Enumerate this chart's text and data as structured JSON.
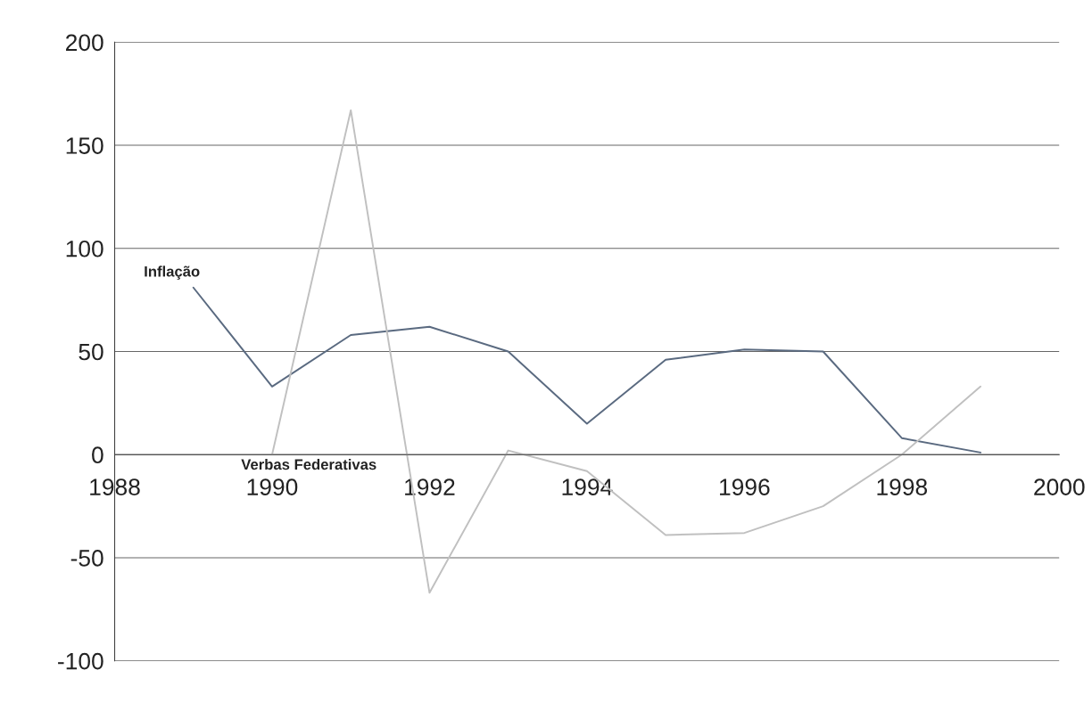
{
  "chart_data": {
    "type": "line",
    "x": [
      1989,
      1990,
      1991,
      1992,
      1993,
      1994,
      1995,
      1996,
      1997,
      1998,
      1999
    ],
    "series": [
      {
        "name": "Inflação",
        "color": "#5a6a80",
        "values": [
          81,
          33,
          58,
          62,
          50,
          15,
          46,
          51,
          50,
          8,
          1
        ]
      },
      {
        "name": "Verbas Federativas",
        "color": "#c0c0c0",
        "values": [
          null,
          0,
          167,
          -67,
          2,
          -8,
          -39,
          -38,
          -25,
          0,
          33
        ]
      }
    ],
    "xlim": [
      1988,
      2000
    ],
    "xticks": [
      1988,
      1990,
      1992,
      1994,
      1996,
      1998,
      2000
    ],
    "ylim": [
      -100,
      200
    ],
    "yticks": [
      -100,
      -50,
      0,
      50,
      100,
      150,
      200
    ],
    "grid": "y",
    "legend": false,
    "marker": "none",
    "line_style": "solid"
  }
}
